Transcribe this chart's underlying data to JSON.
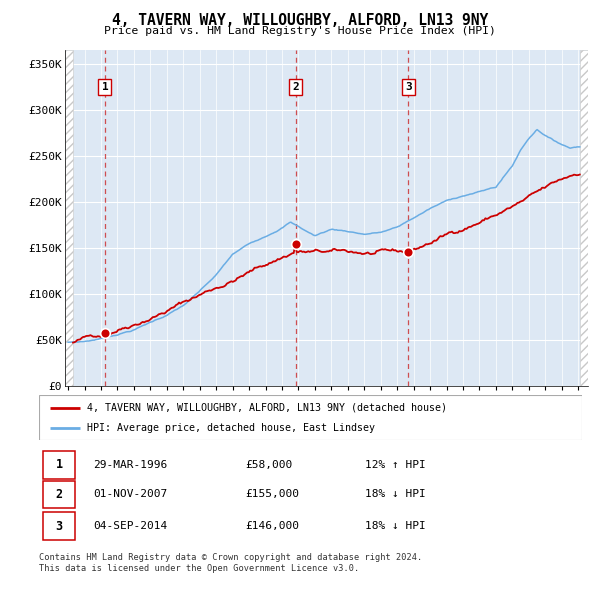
{
  "title": "4, TAVERN WAY, WILLOUGHBY, ALFORD, LN13 9NY",
  "subtitle": "Price paid vs. HM Land Registry's House Price Index (HPI)",
  "ylabel_ticks": [
    "£0",
    "£50K",
    "£100K",
    "£150K",
    "£200K",
    "£250K",
    "£300K",
    "£350K"
  ],
  "ytick_vals": [
    0,
    50000,
    100000,
    150000,
    200000,
    250000,
    300000,
    350000
  ],
  "ylim": [
    0,
    365000
  ],
  "xlim_start": 1993.8,
  "xlim_end": 2025.6,
  "sale_dates": [
    1996.24,
    2007.84,
    2014.68
  ],
  "sale_prices": [
    58000,
    155000,
    146000
  ],
  "sale_labels": [
    "1",
    "2",
    "3"
  ],
  "sale_info": [
    {
      "label": "1",
      "date": "29-MAR-1996",
      "price": "£58,000",
      "hpi": "12% ↑ HPI"
    },
    {
      "label": "2",
      "date": "01-NOV-2007",
      "price": "£155,000",
      "hpi": "18% ↓ HPI"
    },
    {
      "label": "3",
      "date": "04-SEP-2014",
      "price": "£146,000",
      "hpi": "18% ↓ HPI"
    }
  ],
  "legend_line1": "4, TAVERN WAY, WILLOUGHBY, ALFORD, LN13 9NY (detached house)",
  "legend_line2": "HPI: Average price, detached house, East Lindsey",
  "footer": "Contains HM Land Registry data © Crown copyright and database right 2024.\nThis data is licensed under the Open Government Licence v3.0.",
  "property_color": "#cc0000",
  "hpi_color": "#6aade4",
  "vline_color": "#cc3333",
  "plot_bg": "#dde8f4",
  "grid_color": "#ffffff",
  "hatch_color": "#c8c8c8",
  "label_box_color": "#cc0000"
}
